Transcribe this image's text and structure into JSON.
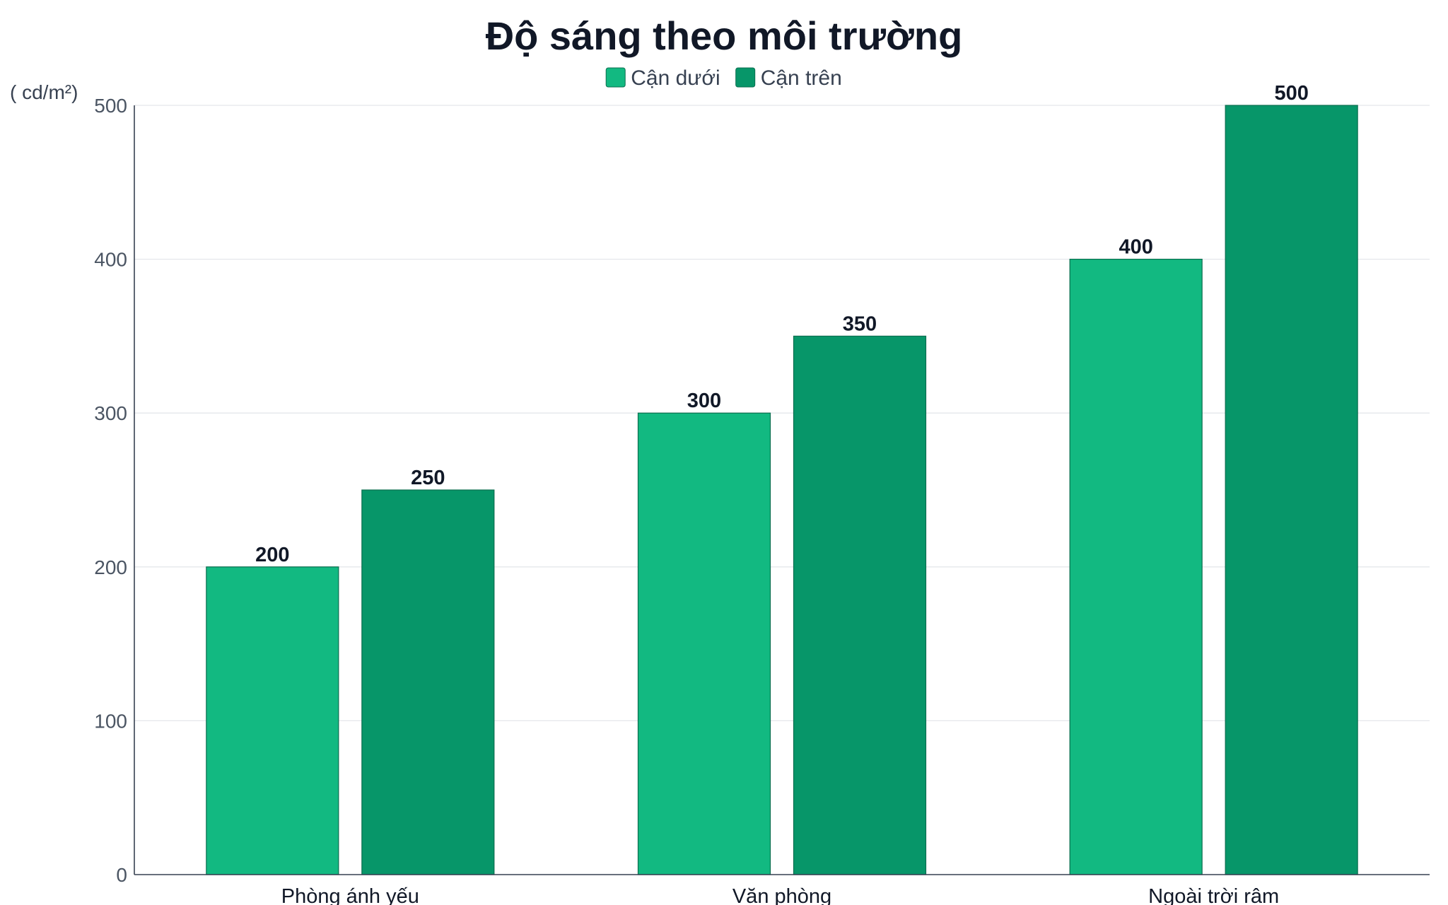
{
  "chart_data": {
    "type": "bar",
    "title": "Độ sáng theo môi trường",
    "unit_label": "( cd/m²)",
    "xlabel": "",
    "ylabel": "( cd/m²)",
    "categories": [
      "Phòng ánh yếu",
      "Văn phòng",
      "Ngoài trời râm"
    ],
    "series": [
      {
        "name": "Cận dưới",
        "values": [
          200,
          300,
          400
        ],
        "color": "#12b981"
      },
      {
        "name": "Cận trên",
        "values": [
          250,
          350,
          500
        ],
        "color": "#079669"
      }
    ],
    "ylim": [
      0,
      500
    ],
    "yticks": [
      0,
      100,
      200,
      300,
      400,
      500
    ],
    "grid": true,
    "legend_position": "top-center",
    "data_labels": true,
    "colors": {
      "bar_border": "#0b6e4f",
      "grid": "#e5e7eb",
      "axis": "#374151",
      "title": "#111827"
    }
  }
}
